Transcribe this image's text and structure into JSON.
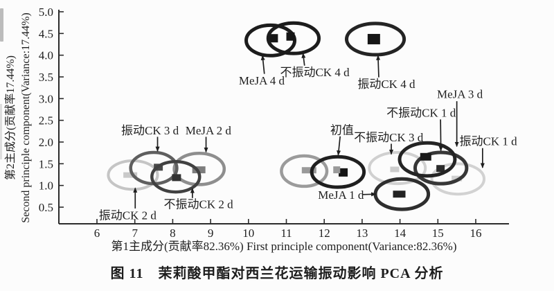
{
  "figure": {
    "caption": "图 11　茉莉酸甲酯对西兰花运输振动影响 PCA 分析"
  },
  "chart_data": {
    "type": "scatter",
    "subtype": "pca-group-ellipses-with-center-markers",
    "title": "",
    "xlabel": "第1主成分(贡献率82.36%) First principle component(Variance:82.36%)",
    "ylabel_line1": "第2主成分(贡献率17.44%)",
    "ylabel_line2": "Second principle component(Variance:17.44%)",
    "x_ticks": [
      6,
      7,
      8,
      9,
      10,
      11,
      12,
      13,
      14,
      15,
      16
    ],
    "y_ticks": [
      0.5,
      1.0,
      1.5,
      2.0,
      2.5,
      3.0,
      3.5,
      4.0,
      4.5,
      5.0
    ],
    "xlim": [
      5.0,
      16.8
    ],
    "ylim": [
      0.12,
      5.05
    ],
    "grid": false,
    "legend": "none (arrow-annotated groups)",
    "axis_color": "#2b2b2b",
    "groups": [
      {
        "label": "振动CK 2 d",
        "cx": 6.95,
        "cy": 1.24,
        "rx": 0.65,
        "ry": 0.33,
        "color": "#c5c5c5",
        "stroke": 4,
        "marker": {
          "x": 6.88,
          "y": 1.24,
          "w": 20,
          "h": 8,
          "color": "#c9c9c9"
        }
      },
      {
        "label": "不振动CK 3 d",
        "cx": 13.93,
        "cy": 1.4,
        "rx": 0.74,
        "ry": 0.36,
        "color": "#d0d0d0",
        "stroke": 4,
        "marker": {
          "x": 13.86,
          "y": 1.37,
          "w": 13,
          "h": 8,
          "color": "#cccccc"
        }
      },
      {
        "label": "振动CK 1 d",
        "cx": 15.53,
        "cy": 1.15,
        "rx": 0.69,
        "ry": 0.35,
        "color": "#d2d2d2",
        "stroke": 4,
        "marker": {
          "x": 15.5,
          "y": 1.16,
          "w": 15,
          "h": 8,
          "color": "#cfcfcf"
        }
      },
      {
        "label": "",
        "cx": 11.47,
        "cy": 1.33,
        "rx": 0.6,
        "ry": 0.35,
        "color": "#9b9b9b",
        "stroke": 4.5,
        "marker": {
          "x": 11.6,
          "y": 1.35,
          "w": 21,
          "h": 9,
          "color": "#999999"
        }
      },
      {
        "label": "MeJA 2 d",
        "cx": 8.7,
        "cy": 1.38,
        "rx": 0.66,
        "ry": 0.36,
        "color": "#8e8e8e",
        "stroke": 4.5,
        "marker": {
          "x": 8.69,
          "y": 1.36,
          "w": 19,
          "h": 10,
          "color": "#7d7d7d"
        }
      },
      {
        "label": "振动CK 3 d",
        "cx": 7.5,
        "cy": 1.4,
        "rx": 0.61,
        "ry": 0.36,
        "color": "#5f5f5f",
        "stroke": 4.5,
        "marker": {
          "x": 7.62,
          "y": 1.42,
          "w": 13,
          "h": 10,
          "color": "#4a4a4a"
        }
      },
      {
        "label": "不振动CK 2 d",
        "cx": 8.08,
        "cy": 1.2,
        "rx": 0.63,
        "ry": 0.35,
        "color": "#414141",
        "stroke": 4.5,
        "marker": {
          "x": 8.1,
          "y": 1.18,
          "w": 13,
          "h": 10,
          "color": "#333333"
        }
      },
      {
        "label": "初值",
        "cx": 12.36,
        "cy": 1.31,
        "rx": 0.69,
        "ry": 0.35,
        "color": "#1f1f1f",
        "stroke": 5,
        "marker": {
          "x": 12.5,
          "y": 1.3,
          "w": 13,
          "h": 12,
          "color": "#161616"
        }
      },
      {
        "label": "MeJA 1 d",
        "cx": 14.05,
        "cy": 0.8,
        "rx": 0.7,
        "ry": 0.35,
        "color": "#2e2e2e",
        "stroke": 5,
        "marker": {
          "x": 13.98,
          "y": 0.8,
          "w": 18,
          "h": 10,
          "color": "#222222"
        }
      },
      {
        "label": "MeJA 3 d",
        "cx": 15.08,
        "cy": 1.4,
        "rx": 0.68,
        "ry": 0.36,
        "color": "#373737",
        "stroke": 5,
        "marker": {
          "x": 15.07,
          "y": 1.39,
          "w": 12,
          "h": 10,
          "color": "#2a2a2a"
        }
      },
      {
        "label": "不振动CK 1 d",
        "cx": 14.72,
        "cy": 1.6,
        "rx": 0.73,
        "ry": 0.38,
        "color": "#242424",
        "stroke": 5,
        "marker": {
          "x": 14.68,
          "y": 1.66,
          "w": 16,
          "h": 11,
          "color": "#1a1a1a"
        }
      },
      {
        "label": "MeJA 4 d",
        "cx": 10.58,
        "cy": 4.34,
        "rx": 0.64,
        "ry": 0.35,
        "color": "#1c1c1c",
        "stroke": 5,
        "marker": {
          "x": 10.65,
          "y": 4.39,
          "w": 14,
          "h": 12,
          "color": "#161616"
        }
      },
      {
        "label": "不振动CK 4 d",
        "cx": 11.19,
        "cy": 4.39,
        "rx": 0.67,
        "ry": 0.35,
        "color": "#1c1c1c",
        "stroke": 5,
        "marker": {
          "x": 11.11,
          "y": 4.43,
          "w": 12,
          "h": 12,
          "color": "#161616"
        }
      },
      {
        "label": "振动CK 4 d",
        "cx": 13.35,
        "cy": 4.37,
        "rx": 0.76,
        "ry": 0.36,
        "color": "#242424",
        "stroke": 5,
        "marker": {
          "x": 13.31,
          "y": 4.37,
          "w": 18,
          "h": 15,
          "color": "#161616"
        }
      }
    ],
    "extra_markers": [
      {
        "x": 12.33,
        "y": 1.36,
        "w": 10,
        "h": 10,
        "color": "#9a9a9a"
      }
    ],
    "annotations": [
      {
        "text": "MeJA 4 d",
        "tx": 10.35,
        "ty": 3.42,
        "arrow": [
          10.42,
          3.57,
          10.37,
          3.99
        ]
      },
      {
        "text": "不振动CK 4 d",
        "tx": 11.75,
        "ty": 3.61,
        "arrow": [
          11.48,
          3.76,
          11.44,
          4.04
        ]
      },
      {
        "text": "振动CK 4 d",
        "tx": 13.64,
        "ty": 3.34,
        "arrow": [
          13.44,
          3.49,
          13.42,
          3.99
        ]
      },
      {
        "text": "振动CK 3 d",
        "tx": 7.4,
        "ty": 2.27,
        "arrow": [
          7.6,
          2.12,
          7.6,
          1.79
        ]
      },
      {
        "text": "MeJA 2 d",
        "tx": 8.94,
        "ty": 2.27,
        "arrow": [
          8.88,
          2.12,
          8.88,
          1.77
        ]
      },
      {
        "text": "不振动CK 2 d",
        "tx": 8.68,
        "ty": 0.57,
        "arrow": [
          8.52,
          0.71,
          8.52,
          0.93
        ]
      },
      {
        "text": "振动CK 2 d",
        "tx": 6.81,
        "ty": 0.32,
        "arrow": [
          7.01,
          0.47,
          7.01,
          0.94
        ]
      },
      {
        "text": "初值",
        "tx": 12.47,
        "ty": 2.28,
        "arrow": [
          12.42,
          2.13,
          12.37,
          1.7
        ]
      },
      {
        "text": "不振动CK 3 d",
        "tx": 13.7,
        "ty": 2.11,
        "arrow": [
          13.77,
          1.96,
          13.77,
          1.72
        ]
      },
      {
        "text": "不振动CK 1 d",
        "tx": 14.56,
        "ty": 2.68,
        "arrow": [
          15.07,
          2.52,
          15.08,
          1.8
        ]
      },
      {
        "text": "MeJA 3 d",
        "tx": 15.58,
        "ty": 3.11,
        "arrow": [
          15.5,
          2.94,
          15.5,
          1.9
        ]
      },
      {
        "text": "振动CK 1 d",
        "tx": 16.33,
        "ty": 2.02,
        "arrow": [
          16.18,
          1.86,
          16.18,
          1.41
        ]
      },
      {
        "text": "MeJA 1 d",
        "tx": 12.44,
        "ty": 0.79,
        "arrow": [
          13.0,
          0.79,
          13.36,
          0.8
        ]
      }
    ]
  }
}
